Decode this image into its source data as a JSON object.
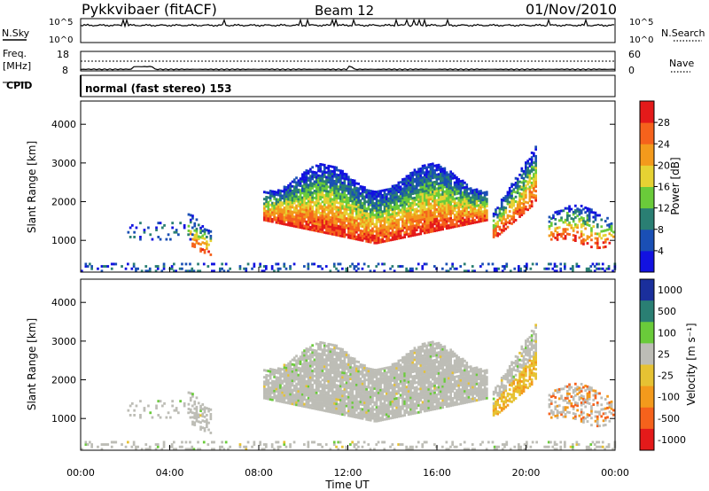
{
  "header": {
    "station": "Pykkvibaer (fitACF)",
    "beam": "Beam 12",
    "date": "01/Nov/2010"
  },
  "mode_text": "normal (fast stereo) 153",
  "panels": {
    "nsky_label": "N.Sky",
    "nsearch_label": "N.Search",
    "freq_label_1": "Freq.",
    "freq_label_2": "[MHz]",
    "nave_label": "Nave",
    "cpid_label": "CPID"
  },
  "chart_data": [
    {
      "type": "line",
      "name": "noise",
      "y_left_ticks": [
        "10^5",
        "10^0"
      ],
      "y_right_ticks": [
        "10^5",
        "10^0"
      ],
      "baseline_level": 0.72,
      "spike_hours": [
        1.9,
        2.1,
        6.5,
        9.9,
        10.2,
        11.3,
        11.5,
        12.3,
        14.2,
        14.7,
        15.0,
        15.2,
        15.5,
        16.5,
        21.0,
        22.7
      ]
    },
    {
      "type": "line",
      "name": "frequency-nave",
      "y_left_ticks": [
        "18",
        "8"
      ],
      "y_right_ticks": [
        "60",
        "0"
      ],
      "freq_mhz": 12,
      "nave": 22
    },
    {
      "type": "heatmap",
      "quantity": "power",
      "ylabel": "Slant Range [km]",
      "y_ticks": [
        1000,
        2000,
        3000,
        4000
      ],
      "ylim": [
        180,
        4600
      ],
      "colorbar_label": "Power [dB]",
      "colorbar_ticks": [
        4,
        8,
        12,
        16,
        20,
        24,
        28
      ],
      "colorbar_range": [
        0,
        32
      ],
      "colors": [
        "#1212e0",
        "#1a4fb5",
        "#2a7f73",
        "#6acb3a",
        "#e6d233",
        "#f39a1c",
        "#f5621c",
        "#e41a1a"
      ]
    },
    {
      "type": "heatmap",
      "quantity": "velocity",
      "ylabel": "Slant Range [km]",
      "y_ticks": [
        1000,
        2000,
        3000,
        4000
      ],
      "ylim": [
        180,
        4600
      ],
      "xlabel": "Time UT",
      "x_ticks": [
        "00:00",
        "04:00",
        "08:00",
        "12:00",
        "16:00",
        "20:00",
        "00:00"
      ],
      "colorbar_label": "Velocity [m s⁻¹]",
      "colorbar_ticks": [
        "1000",
        "500",
        "100",
        "25",
        "-25",
        "-100",
        "-500",
        "-1000"
      ],
      "colors": [
        "#1a2f9c",
        "#2a7f73",
        "#6acb3a",
        "#bdbdb6",
        "#e6c233",
        "#f39a1c",
        "#f5621c",
        "#e41a1a"
      ]
    }
  ]
}
